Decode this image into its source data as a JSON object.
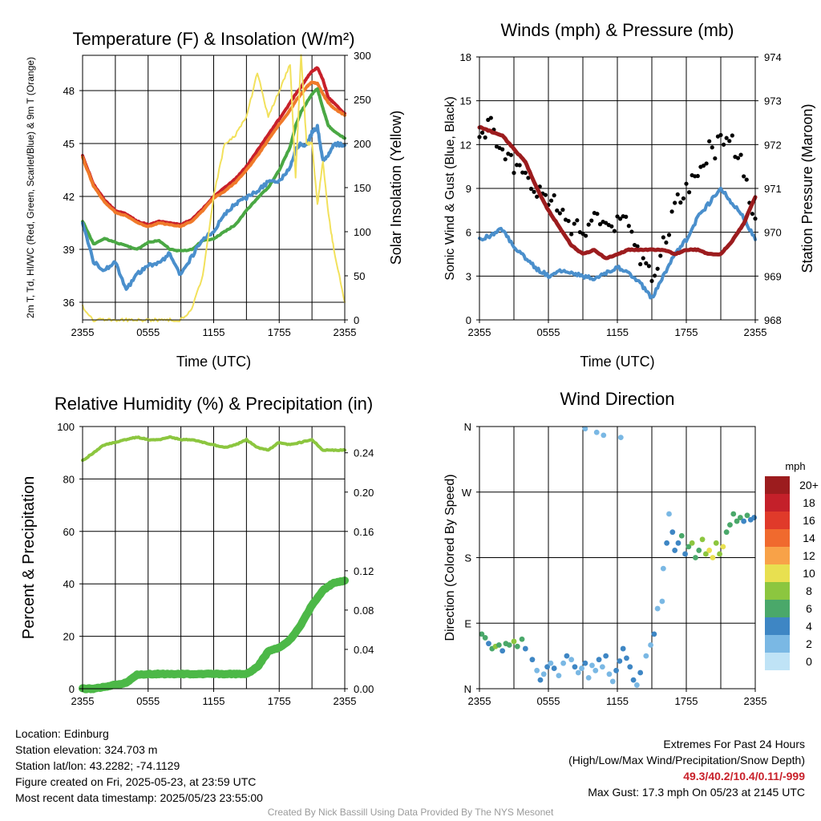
{
  "chart_data": [
    {
      "type": "line",
      "title": "Temperature (F) & Insolation (W/m²)",
      "xlabel": "Time (UTC)",
      "ylabel_left": "2m T, Td, HI/WC (Red, Green, Scarlet/Blue) & 9m T (Orange)",
      "ylabel_right": "Solar Insolation (Yellow)",
      "x_ticks": [
        "2355",
        "0555",
        "1155",
        "1755",
        "2355"
      ],
      "y_ticks_left": [
        "36",
        "39",
        "42",
        "45",
        "48"
      ],
      "y_ticks_right": [
        "0",
        "50",
        "100",
        "150",
        "200",
        "250",
        "300"
      ],
      "ylim_left": [
        35,
        50
      ],
      "ylim_right": [
        0,
        300
      ],
      "grid": true,
      "x_hours": [
        0,
        1,
        2,
        3,
        4,
        5,
        6,
        7,
        8,
        9,
        10,
        11,
        12,
        13,
        14,
        15,
        16,
        17,
        18,
        19,
        19.5,
        20,
        20.5,
        21,
        21.5,
        22,
        22.5,
        23,
        24
      ],
      "series": [
        {
          "axis": "left",
          "color": "#c8202a",
          "values": [
            44.3,
            42.7,
            41.8,
            41.2,
            41.0,
            40.6,
            40.4,
            40.6,
            40.5,
            40.4,
            40.7,
            41.3,
            42.0,
            42.5,
            43.0,
            43.7,
            44.6,
            45.5,
            46.4,
            47.3,
            47.8,
            48.2,
            48.7,
            49.1,
            49.3,
            48.6,
            47.6,
            47.3,
            46.7
          ]
        },
        {
          "axis": "left",
          "color": "#f07a2a",
          "values": [
            44.2,
            42.6,
            41.7,
            41.1,
            40.9,
            40.5,
            40.3,
            40.5,
            40.4,
            40.3,
            40.6,
            41.2,
            41.9,
            42.3,
            42.8,
            43.5,
            44.3,
            45.2,
            46.1,
            46.9,
            47.4,
            47.8,
            48.2,
            48.5,
            48.4,
            47.8,
            47.3,
            47.0,
            46.6
          ]
        },
        {
          "axis": "left",
          "color": "#4aa844",
          "values": [
            40.6,
            39.3,
            39.6,
            39.4,
            39.2,
            39.0,
            39.4,
            39.5,
            39.0,
            38.9,
            39.0,
            39.5,
            39.6,
            40.0,
            40.4,
            41.2,
            41.9,
            42.5,
            43.5,
            44.8,
            46.0,
            46.8,
            47.3,
            47.8,
            48.1,
            47.0,
            46.0,
            45.7,
            45.3
          ]
        },
        {
          "axis": "left",
          "color": "#4a8fcc",
          "values": [
            40.5,
            38.3,
            37.8,
            38.3,
            36.7,
            37.6,
            38.1,
            38.2,
            38.8,
            37.5,
            38.6,
            39.6,
            40.0,
            41.0,
            41.6,
            41.9,
            42.3,
            42.8,
            42.9,
            43.6,
            44.6,
            45.0,
            44.9,
            45.6,
            46.0,
            44.0,
            44.4,
            45.0,
            44.9
          ]
        },
        {
          "axis": "right",
          "color": "#f2e15c",
          "values": [
            15,
            0,
            0,
            0,
            0,
            0,
            0,
            0,
            0,
            0,
            12,
            50,
            140,
            200,
            210,
            230,
            280,
            230,
            260,
            290,
            160,
            300,
            200,
            200,
            130,
            180,
            120,
            80,
            20
          ]
        }
      ]
    },
    {
      "type": "line",
      "title": "Winds (mph) & Pressure (mb)",
      "xlabel": "Time (UTC)",
      "ylabel_left": "Sonic Wind & Gust (Blue, Black)",
      "ylabel_right": "Station Pressure (Maroon)",
      "x_ticks": [
        "2355",
        "0555",
        "1155",
        "1755",
        "2355"
      ],
      "y_ticks_left": [
        "0",
        "3",
        "6",
        "9",
        "12",
        "15",
        "18"
      ],
      "y_ticks_right": [
        "968",
        "969",
        "970",
        "971",
        "972",
        "973",
        "974"
      ],
      "ylim_left": [
        0,
        18
      ],
      "ylim_right": [
        968,
        974
      ],
      "grid": true,
      "x_hours": [
        0,
        1,
        2,
        3,
        4,
        5,
        6,
        7,
        8,
        9,
        10,
        11,
        12,
        13,
        14,
        15,
        16,
        17,
        18,
        19,
        20,
        21,
        22,
        23,
        24
      ],
      "series": [
        {
          "name": "wind",
          "axis": "left",
          "color": "#4a8fcc",
          "values": [
            5.5,
            5.8,
            6.2,
            5.0,
            4.2,
            3.5,
            3.0,
            3.4,
            3.2,
            3.0,
            2.8,
            3.2,
            3.6,
            3.2,
            2.5,
            1.5,
            3.0,
            4.5,
            5.5,
            7.0,
            8.0,
            9.0,
            8.0,
            7.0,
            5.5
          ]
        },
        {
          "name": "gust",
          "axis": "left",
          "color": "#000000",
          "values": [
            12.0,
            13.5,
            11.0,
            10.5,
            9.5,
            9.0,
            8.5,
            7.5,
            6.5,
            6.0,
            6.8,
            6.0,
            6.5,
            7.0,
            4.5,
            3.0,
            5.5,
            7.5,
            9.0,
            10.0,
            11.5,
            12.0,
            12.5,
            10.0,
            7.0
          ]
        },
        {
          "name": "pressure",
          "axis": "right",
          "color": "#9c1c1e",
          "values": [
            972.4,
            972.3,
            972.2,
            971.9,
            971.6,
            971.0,
            970.5,
            970.1,
            969.7,
            969.5,
            969.6,
            969.4,
            969.5,
            969.6,
            969.6,
            969.6,
            969.6,
            969.5,
            969.6,
            969.6,
            969.5,
            969.5,
            969.8,
            970.2,
            970.8
          ]
        }
      ]
    },
    {
      "type": "line",
      "title": "Relative Humidity (%) & Precipitation (in)",
      "ylabel_left": "Percent & Precipitation",
      "x_ticks": [
        "2355",
        "0555",
        "1155",
        "1755",
        "2355"
      ],
      "y_ticks_left": [
        "0",
        "20",
        "40",
        "60",
        "80",
        "100"
      ],
      "y_ticks_right": [
        "0.00",
        "0.04",
        "0.08",
        "0.12",
        "0.16",
        "0.20",
        "0.24"
      ],
      "ylim_left": [
        0,
        100
      ],
      "ylim_right": [
        0,
        0.2667
      ],
      "grid": true,
      "x_hours": [
        0,
        1,
        2,
        3,
        4,
        5,
        6,
        7,
        8,
        9,
        10,
        11,
        12,
        13,
        14,
        15,
        16,
        17,
        18,
        19,
        20,
        21,
        22,
        23,
        24
      ],
      "series": [
        {
          "name": "relative humidity",
          "axis": "left",
          "color": "#8cc63f",
          "values": [
            87,
            90,
            93,
            94,
            95,
            96,
            95,
            95,
            96,
            95,
            95,
            94,
            93,
            92,
            93,
            95,
            92,
            91,
            94,
            93,
            94,
            95,
            91,
            91,
            91
          ]
        },
        {
          "name": "precipitation",
          "axis": "right",
          "color": "#4cb847",
          "values": [
            0.0,
            0.0,
            0.002,
            0.004,
            0.006,
            0.014,
            0.015,
            0.015,
            0.015,
            0.015,
            0.015,
            0.015,
            0.015,
            0.015,
            0.015,
            0.015,
            0.022,
            0.038,
            0.042,
            0.05,
            0.065,
            0.085,
            0.1,
            0.108,
            0.11
          ]
        }
      ]
    },
    {
      "type": "scatter",
      "title": "Wind Direction",
      "ylabel_left": "Direction (Colored By Speed)",
      "x_ticks": [
        "2355",
        "0555",
        "1155",
        "1755",
        "2355"
      ],
      "y_ticks_left": [
        "N",
        "E",
        "S",
        "W",
        "N"
      ],
      "ylim_left": [
        0,
        360
      ],
      "grid": true,
      "colorbar": {
        "title": "mph",
        "labels": [
          "20+",
          "18",
          "16",
          "14",
          "12",
          "10",
          "8",
          "6",
          "4",
          "2",
          "0"
        ],
        "colors": [
          "#9c1c1e",
          "#c4202a",
          "#e03a2a",
          "#f06a2e",
          "#f8a248",
          "#e8e050",
          "#8cc63f",
          "#4aa86a",
          "#3e86c4",
          "#7ab8e4",
          "#bfe3f6"
        ]
      },
      "points": [
        [
          0.2,
          75,
          6
        ],
        [
          0.5,
          70,
          5
        ],
        [
          0.8,
          62,
          4
        ],
        [
          1.1,
          55,
          6
        ],
        [
          1.4,
          58,
          7
        ],
        [
          1.7,
          60,
          5
        ],
        [
          2.0,
          52,
          4
        ],
        [
          2.3,
          62,
          6
        ],
        [
          2.6,
          60,
          5
        ],
        [
          3.0,
          65,
          7
        ],
        [
          3.3,
          58,
          6
        ],
        [
          3.7,
          68,
          5
        ],
        [
          4.0,
          55,
          4
        ],
        [
          4.6,
          40,
          3
        ],
        [
          5.0,
          25,
          2
        ],
        [
          5.3,
          12,
          3
        ],
        [
          5.6,
          20,
          2
        ],
        [
          5.9,
          30,
          3
        ],
        [
          6.2,
          35,
          2
        ],
        [
          6.5,
          28,
          3
        ],
        [
          6.9,
          18,
          2
        ],
        [
          7.3,
          35,
          2
        ],
        [
          7.6,
          45,
          3
        ],
        [
          8.0,
          40,
          2
        ],
        [
          8.3,
          30,
          3
        ],
        [
          8.6,
          22,
          2
        ],
        [
          8.9,
          28,
          2
        ],
        [
          9.2,
          35,
          3
        ],
        [
          9.5,
          15,
          2
        ],
        [
          9.8,
          32,
          2
        ],
        [
          10.1,
          25,
          2
        ],
        [
          10.4,
          40,
          3
        ],
        [
          10.7,
          30,
          2
        ],
        [
          11.0,
          45,
          3
        ],
        [
          11.3,
          20,
          2
        ],
        [
          11.6,
          10,
          2
        ],
        [
          11.9,
          25,
          3
        ],
        [
          12.2,
          38,
          3
        ],
        [
          12.5,
          55,
          3
        ],
        [
          12.8,
          42,
          3
        ],
        [
          13.1,
          30,
          4
        ],
        [
          13.4,
          12,
          3
        ],
        [
          13.7,
          5,
          2
        ],
        [
          14.0,
          22,
          3
        ],
        [
          9.2,
          357,
          1
        ],
        [
          10.2,
          352,
          2
        ],
        [
          10.8,
          348,
          2
        ],
        [
          12.3,
          345,
          2
        ],
        [
          14.5,
          45,
          1
        ],
        [
          14.9,
          60,
          2
        ],
        [
          15.2,
          75,
          3
        ],
        [
          15.5,
          110,
          2
        ],
        [
          15.9,
          120,
          1
        ],
        [
          16.0,
          165,
          2
        ],
        [
          16.3,
          200,
          3
        ],
        [
          16.5,
          240,
          2
        ],
        [
          16.8,
          215,
          4
        ],
        [
          17.0,
          190,
          3
        ],
        [
          17.3,
          200,
          4
        ],
        [
          17.6,
          210,
          5
        ],
        [
          17.9,
          185,
          4
        ],
        [
          18.2,
          195,
          6
        ],
        [
          18.5,
          200,
          7
        ],
        [
          18.8,
          180,
          5
        ],
        [
          19.1,
          190,
          6
        ],
        [
          19.4,
          205,
          7
        ],
        [
          19.7,
          185,
          8
        ],
        [
          20.0,
          190,
          9
        ],
        [
          20.3,
          180,
          10
        ],
        [
          20.6,
          200,
          7
        ],
        [
          20.9,
          185,
          8
        ],
        [
          21.2,
          195,
          10
        ],
        [
          21.5,
          215,
          6
        ],
        [
          21.8,
          225,
          5
        ],
        [
          22.1,
          240,
          6
        ],
        [
          22.4,
          230,
          5
        ],
        [
          22.7,
          235,
          6
        ],
        [
          23.0,
          230,
          4
        ],
        [
          23.3,
          238,
          5
        ],
        [
          23.6,
          232,
          4
        ],
        [
          23.9,
          235,
          4
        ]
      ]
    }
  ],
  "info": {
    "location": "Location: Edinburg",
    "elevation": "Station elevation: 324.703 m",
    "latlon": "Station lat/lon: 43.2282; -74.1129",
    "created": "Figure created on Fri, 2025-05-23, at 23:59 UTC",
    "recent": "Most recent data timestamp: 2025/05/23 23:55:00"
  },
  "extremes": {
    "title": "Extremes For Past 24 Hours",
    "legend": "(High/Low/Max Wind/Precipitation/Snow Depth)",
    "values": "49.3/40.2/10.4/0.11/-999",
    "gust": "Max Gust: 17.3 mph On 05/23 at 2145 UTC"
  },
  "credit": "Created By Nick Bassill Using Data Provided By The NYS Mesonet"
}
